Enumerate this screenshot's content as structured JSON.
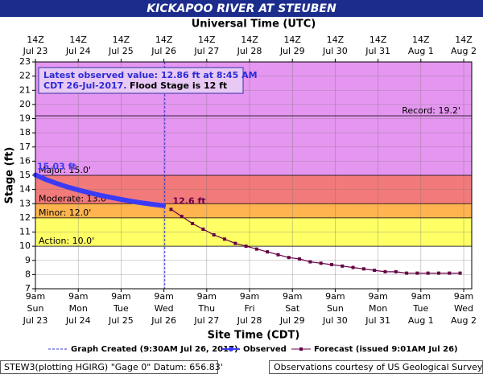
{
  "chart_data": {
    "type": "line",
    "title": "KICKAPOO RIVER AT STEUBEN",
    "top_axis_label": "Universal Time (UTC)",
    "x_label": "Site Time (CDT)",
    "y_label": "Stage (ft)",
    "xlim": [
      "2017-07-23T09:00",
      "2017-08-02T13:30"
    ],
    "xticks": [
      {
        "value": "2017-07-23T09:00",
        "label": "9am",
        "day": "Sun",
        "date": "Jul 23"
      },
      {
        "value": "2017-07-24T09:00",
        "label": "9am",
        "day": "Mon",
        "date": "Jul 24"
      },
      {
        "value": "2017-07-25T09:00",
        "label": "9am",
        "day": "Tue",
        "date": "Jul 25"
      },
      {
        "value": "2017-07-26T09:00",
        "label": "9am",
        "day": "Wed",
        "date": "Jul 26"
      },
      {
        "value": "2017-07-27T09:00",
        "label": "9am",
        "day": "Thu",
        "date": "Jul 27"
      },
      {
        "value": "2017-07-28T09:00",
        "label": "9am",
        "day": "Fri",
        "date": "Jul 28"
      },
      {
        "value": "2017-07-29T09:00",
        "label": "9am",
        "day": "Sat",
        "date": "Jul 29"
      },
      {
        "value": "2017-07-30T09:00",
        "label": "9am",
        "day": "Sun",
        "date": "Jul 30"
      },
      {
        "value": "2017-07-31T09:00",
        "label": "9am",
        "day": "Mon",
        "date": "Jul 31"
      },
      {
        "value": "2017-08-01T09:00",
        "label": "9am",
        "day": "Tue",
        "date": "Aug 1"
      },
      {
        "value": "2017-08-02T09:00",
        "label": "9am",
        "day": "Wed",
        "date": "Aug 2"
      }
    ],
    "top_ticks": [
      {
        "value": "2017-07-23T09:00",
        "label": "14Z",
        "date": "Jul 23"
      },
      {
        "value": "2017-07-24T09:00",
        "label": "14Z",
        "date": "Jul 24"
      },
      {
        "value": "2017-07-25T09:00",
        "label": "14Z",
        "date": "Jul 25"
      },
      {
        "value": "2017-07-26T09:00",
        "label": "14Z",
        "date": "Jul 26"
      },
      {
        "value": "2017-07-27T09:00",
        "label": "14Z",
        "date": "Jul 27"
      },
      {
        "value": "2017-07-28T09:00",
        "label": "14Z",
        "date": "Jul 28"
      },
      {
        "value": "2017-07-29T09:00",
        "label": "14Z",
        "date": "Jul 29"
      },
      {
        "value": "2017-07-30T09:00",
        "label": "14Z",
        "date": "Jul 30"
      },
      {
        "value": "2017-07-31T09:00",
        "label": "14Z",
        "date": "Jul 31"
      },
      {
        "value": "2017-08-01T09:00",
        "label": "14Z",
        "date": "Aug 1"
      },
      {
        "value": "2017-08-02T09:00",
        "label": "14Z",
        "date": "Aug 2"
      }
    ],
    "ylim": [
      7,
      23
    ],
    "yticks": [
      7,
      8,
      9,
      10,
      11,
      12,
      13,
      14,
      15,
      16,
      17,
      18,
      19,
      20,
      21,
      22,
      23
    ],
    "grid": true,
    "flood_categories": [
      {
        "value": 10,
        "label": "Action: 10.0'",
        "color": "#ffff66"
      },
      {
        "value": 12,
        "label": "Minor: 12.0'",
        "color": "#ffb450"
      },
      {
        "value": 13,
        "label": "Moderate: 13.0'",
        "color": "#f27a7a"
      },
      {
        "value": 15,
        "label": "Major: 15.0'",
        "color": "#e596f0"
      }
    ],
    "record": {
      "value": 19.2,
      "label": "Record: 19.2'"
    },
    "latest_observed": {
      "text": "Latest observed value: 12.86 ft at 8:45 AM",
      "text2": "CDT 26-Jul-2017.",
      "flood_stage": "Flood Stage is 12 ft"
    },
    "graph_created": {
      "x": "2017-07-26T09:30",
      "label": "Graph Created (9:30AM Jul 26, 2017)",
      "color": "#3333cc"
    },
    "series": [
      {
        "name": "Observed",
        "color": "#3b3bf5",
        "x": [
          "2017-07-23T09:00",
          "2017-07-23T15:00",
          "2017-07-23T21:00",
          "2017-07-24T03:00",
          "2017-07-24T09:00",
          "2017-07-24T15:00",
          "2017-07-24T21:00",
          "2017-07-25T03:00",
          "2017-07-25T09:00",
          "2017-07-25T15:00",
          "2017-07-25T21:00",
          "2017-07-26T03:00",
          "2017-07-26T08:45"
        ],
        "values": [
          15.03,
          14.7,
          14.42,
          14.18,
          13.97,
          13.78,
          13.6,
          13.45,
          13.3,
          13.17,
          13.05,
          12.95,
          12.86
        ],
        "value_labels": [
          "15.03 ft",
          null,
          null,
          null,
          null,
          null,
          null,
          null,
          null,
          null,
          null,
          null,
          null
        ]
      },
      {
        "name": "Forecast (issued 9:01AM Jul 26)",
        "color": "#660044",
        "x": [
          "2017-07-26T13:00",
          "2017-07-26T19:00",
          "2017-07-27T01:00",
          "2017-07-27T07:00",
          "2017-07-27T13:00",
          "2017-07-27T19:00",
          "2017-07-28T01:00",
          "2017-07-28T07:00",
          "2017-07-28T13:00",
          "2017-07-28T19:00",
          "2017-07-29T01:00",
          "2017-07-29T07:00",
          "2017-07-29T13:00",
          "2017-07-29T19:00",
          "2017-07-30T01:00",
          "2017-07-30T07:00",
          "2017-07-30T13:00",
          "2017-07-30T19:00",
          "2017-07-31T01:00",
          "2017-07-31T07:00",
          "2017-07-31T13:00",
          "2017-07-31T19:00",
          "2017-08-01T01:00",
          "2017-08-01T07:00",
          "2017-08-01T13:00",
          "2017-08-01T19:00",
          "2017-08-02T01:00",
          "2017-08-02T07:00"
        ],
        "values": [
          12.6,
          12.1,
          11.6,
          11.2,
          10.8,
          10.5,
          10.2,
          10.0,
          9.8,
          9.6,
          9.4,
          9.2,
          9.1,
          8.9,
          8.8,
          8.7,
          8.6,
          8.5,
          8.4,
          8.3,
          8.2,
          8.2,
          8.1,
          8.1,
          8.1,
          8.1,
          8.1,
          8.1
        ],
        "value_labels": [
          "12.6 ft",
          null,
          null,
          null,
          null,
          null,
          null,
          null,
          null,
          null,
          null,
          null,
          null,
          null,
          null,
          null,
          null,
          null,
          null,
          null,
          null,
          null,
          null,
          null,
          null,
          null,
          null,
          null
        ]
      }
    ],
    "footer_left": "STEW3(plotting HGIRG) \"Gage 0\" Datum: 656.83'",
    "footer_right": "Observations courtesy of US Geological Survey"
  }
}
